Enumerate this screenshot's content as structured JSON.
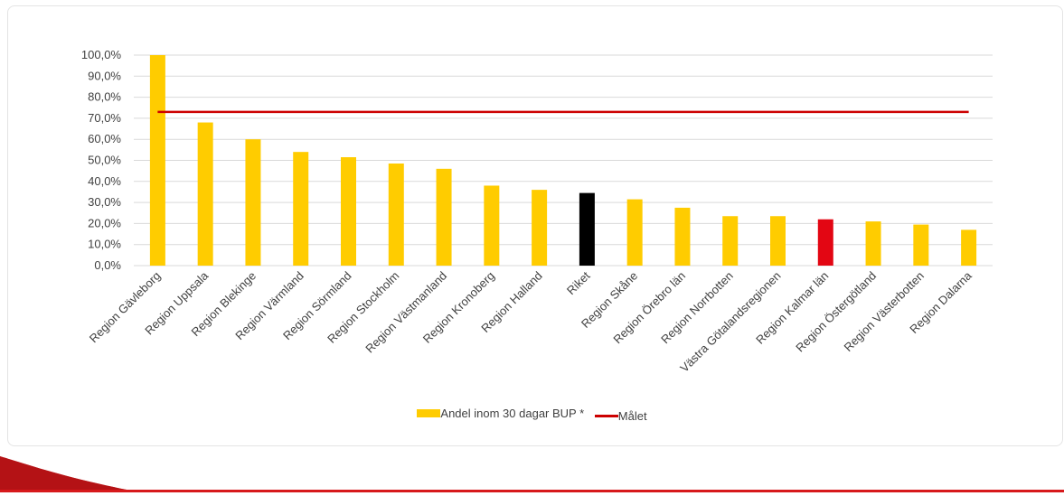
{
  "chart_data": {
    "type": "bar",
    "categories": [
      "Region Gävleborg",
      "Region Uppsala",
      "Region Blekinge",
      "Region Värmland",
      "Region Sörmland",
      "Region Stockholm",
      "Region Västmanland",
      "Region Kronoberg",
      "Region Halland",
      "Riket",
      "Region Skåne",
      "Region Örebro län",
      "Region Norrbotten",
      "Västra Götalandsregionen",
      "Region Kalmar län",
      "Region Östergötland",
      "Region Västerbotten",
      "Region Dalarna"
    ],
    "series": [
      {
        "name": "Andel inom 30 dagar BUP *",
        "type": "bar",
        "values": [
          100.0,
          68.0,
          60.0,
          54.0,
          51.5,
          48.5,
          46.0,
          38.0,
          36.0,
          34.5,
          31.5,
          27.5,
          23.5,
          23.5,
          22.0,
          21.0,
          19.5,
          17.0
        ]
      },
      {
        "name": "Målet",
        "type": "line",
        "values": [
          73,
          73,
          73,
          73,
          73,
          73,
          73,
          73,
          73,
          73,
          73,
          73,
          73,
          73,
          73,
          73,
          73,
          73
        ]
      }
    ],
    "yticks": [
      "0,0%",
      "10,0%",
      "20,0%",
      "30,0%",
      "40,0%",
      "50,0%",
      "60,0%",
      "70,0%",
      "80,0%",
      "90,0%",
      "100,0%"
    ],
    "ylim": [
      0,
      100
    ],
    "grid": true,
    "legend_position": "bottom",
    "colors": {
      "default_bar": "#FFCC00",
      "highlight_riket": "#000000",
      "highlight_kalmar": "#E30613",
      "target_line": "#CC0000"
    },
    "bar_color_overrides": {
      "Riket": "#000000",
      "Region Kalmar län": "#E30613"
    }
  }
}
